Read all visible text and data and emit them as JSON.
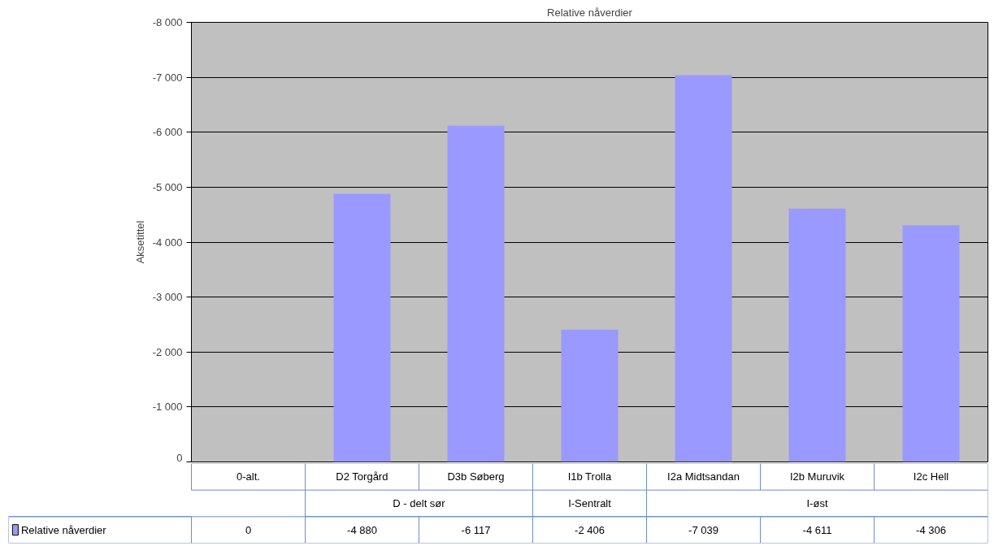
{
  "chart_data": {
    "type": "bar",
    "title": "Relative nåverdier",
    "ylabel": "Aksetittel",
    "categories": [
      "0-alt.",
      "D2 Torgård",
      "D3b Søberg",
      "I1b Trolla",
      "I2a Midtsandan",
      "I2b Muruvik",
      "I2c Hell"
    ],
    "series": [
      {
        "name": "Relative nåverdier",
        "color": "#9999ff",
        "values": [
          0,
          -4880,
          -6117,
          -2406,
          -7039,
          -4611,
          -4306
        ],
        "value_labels": [
          "0",
          "-4 880",
          "-6 117",
          "-2 406",
          "-7 039",
          "-4 611",
          "-4 306"
        ]
      }
    ],
    "ylim": [
      0,
      -8000
    ],
    "yticks": [
      {
        "value": 0,
        "label": "0"
      },
      {
        "value": -1000,
        "label": "-1 000"
      },
      {
        "value": -2000,
        "label": "-2 000"
      },
      {
        "value": -3000,
        "label": "-3 000"
      },
      {
        "value": -4000,
        "label": "-4 000"
      },
      {
        "value": -5000,
        "label": "-5 000"
      },
      {
        "value": -6000,
        "label": "-6 000"
      },
      {
        "value": -7000,
        "label": "-7 000"
      },
      {
        "value": -8000,
        "label": "-8 000"
      }
    ],
    "grid": "y",
    "legend": "bottom left",
    "annotations": [
      "D - delt sør",
      "I-Sentralt",
      "I-øst"
    ]
  }
}
